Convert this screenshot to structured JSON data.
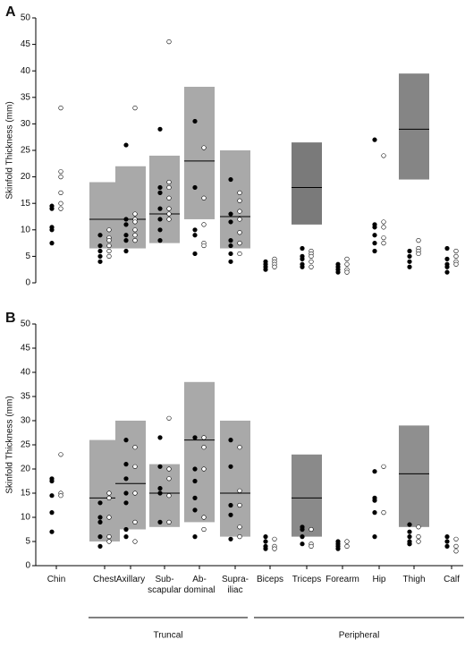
{
  "chart_data": [
    {
      "type": "dot",
      "panel": "A",
      "ylabel": "Skinfold Thickness (mm)",
      "ylim": [
        0,
        50
      ],
      "yticks": [
        0,
        5,
        10,
        15,
        20,
        25,
        30,
        35,
        40,
        45,
        50
      ],
      "ranges": [
        null,
        [
          6.5,
          19
        ],
        [
          6.5,
          22
        ],
        [
          7.5,
          24
        ],
        [
          12,
          37
        ],
        [
          6.5,
          25
        ],
        null,
        [
          11,
          26.5
        ],
        null,
        null,
        [
          19.5,
          39.5
        ],
        null
      ],
      "medians": [
        null,
        12,
        12,
        13,
        23,
        12.5,
        null,
        18,
        null,
        null,
        29,
        null
      ],
      "range_colors": [
        null,
        "#a9a9a9",
        "#a9a9a9",
        "#a9a9a9",
        "#a9a9a9",
        "#a9a9a9",
        null,
        "#7a7a7a",
        null,
        null,
        "#858585",
        null
      ],
      "filled_color": "#000000",
      "open_color": "#ffffff",
      "filled": [
        [
          14.5,
          14,
          10.5,
          10,
          7.5
        ],
        [
          9,
          7,
          6,
          5,
          4
        ],
        [
          26,
          12,
          11,
          9,
          8,
          6
        ],
        [
          29,
          18,
          17,
          14,
          12,
          10,
          8
        ],
        [
          30.5,
          18,
          10,
          9,
          5.5
        ],
        [
          19.5,
          13,
          11.5,
          8,
          7,
          5.5,
          4
        ],
        [
          4,
          3.5,
          3,
          2.5
        ],
        [
          6.5,
          5,
          4.5,
          3.5,
          3
        ],
        [
          3.5,
          3,
          2.5,
          2
        ],
        [
          27,
          11,
          10.5,
          9,
          7.5,
          6
        ],
        [
          6,
          5,
          4,
          3
        ],
        [
          6.5,
          4.5,
          3.5,
          3,
          2
        ]
      ],
      "open": [
        [
          33,
          21,
          20,
          17,
          15,
          14
        ],
        [
          10,
          8.5,
          8,
          7,
          6,
          5
        ],
        [
          33,
          13,
          12,
          11.5,
          10,
          9,
          8
        ],
        [
          45.5,
          19,
          18,
          16,
          14,
          13,
          12
        ],
        [
          25.5,
          16,
          11,
          7.5,
          7
        ],
        [
          17,
          15.5,
          13.5,
          12,
          9.5,
          7.5,
          5.5
        ],
        [
          4.5,
          4,
          3.5,
          3
        ],
        [
          6,
          5.5,
          5,
          4,
          3
        ],
        [
          4.5,
          3.5,
          2.5,
          2
        ],
        [
          24,
          11.5,
          10.5,
          8.5,
          7.5
        ],
        [
          8,
          6.5,
          6,
          5.5
        ],
        [
          6,
          5,
          4,
          3.5
        ]
      ]
    },
    {
      "type": "dot",
      "panel": "B",
      "ylabel": "Skinfold Thickness (mm)",
      "ylim": [
        0,
        50
      ],
      "yticks": [
        0,
        5,
        10,
        15,
        20,
        25,
        30,
        35,
        40,
        45,
        50
      ],
      "categories": [
        "Chin",
        "Chest",
        "Axillary",
        "Sub- scapular",
        "Ab- dominal",
        "Supra- iliac",
        "Biceps",
        "Triceps",
        "Forearm",
        "Hip",
        "Thigh",
        "Calf"
      ],
      "groups": [
        {
          "name": "Truncal",
          "start": 1,
          "end": 5
        },
        {
          "name": "Peripheral",
          "start": 6,
          "end": 11
        }
      ],
      "ranges": [
        null,
        [
          5,
          26
        ],
        [
          7.5,
          30
        ],
        [
          8,
          21
        ],
        [
          9,
          38
        ],
        [
          6,
          30
        ],
        null,
        [
          6,
          23
        ],
        null,
        null,
        [
          8,
          29
        ],
        null
      ],
      "medians": [
        null,
        14,
        17,
        15,
        26,
        15,
        null,
        14,
        null,
        null,
        19,
        null
      ],
      "range_colors": [
        null,
        "#a9a9a9",
        "#a9a9a9",
        "#a9a9a9",
        "#a9a9a9",
        "#a9a9a9",
        null,
        "#8a8a8a",
        null,
        null,
        "#8f8f8f",
        null
      ],
      "filled_color": "#000000",
      "open_color": "#ffffff",
      "filled": [
        [
          18,
          17.5,
          14.5,
          11,
          7
        ],
        [
          13,
          10,
          9,
          6,
          4
        ],
        [
          26,
          21,
          18,
          15,
          13,
          7.5,
          6
        ],
        [
          26.5,
          20.5,
          16,
          15,
          9
        ],
        [
          26.5,
          20,
          17.5,
          14,
          11.5,
          6
        ],
        [
          26,
          20.5,
          12.5,
          10.5,
          5.5
        ],
        [
          6,
          5,
          4,
          3.5
        ],
        [
          8,
          7.5,
          6,
          4.5
        ],
        [
          5,
          4.5,
          4,
          3.5
        ],
        [
          19.5,
          14,
          13.5,
          11,
          6
        ],
        [
          8.5,
          7,
          6,
          5,
          4.5,
          4.5
        ],
        [
          6,
          5,
          4
        ]
      ],
      "open": [
        [
          23,
          15,
          14.5
        ],
        [
          15,
          14,
          10,
          6,
          5
        ],
        [
          24.5,
          20.5,
          15,
          9,
          5
        ],
        [
          30.5,
          20,
          18,
          14.5,
          9
        ],
        [
          26.5,
          24.5,
          20,
          10,
          7.5
        ],
        [
          24.5,
          15.5,
          12.5,
          8,
          6
        ],
        [
          5.5,
          4,
          3.5
        ],
        [
          7.5,
          4.5,
          4
        ],
        [
          5,
          4
        ],
        [
          20.5,
          11
        ],
        [
          8,
          6,
          5
        ],
        [
          5.5,
          4,
          3
        ]
      ]
    }
  ]
}
